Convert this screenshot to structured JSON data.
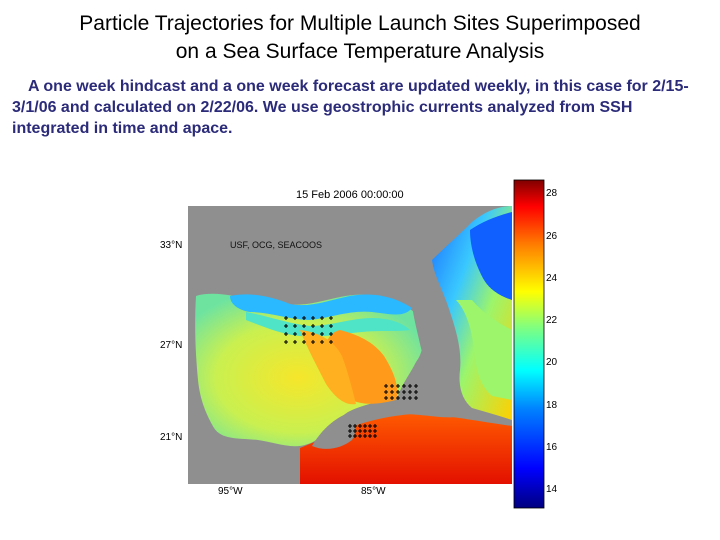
{
  "slide": {
    "title": "Particle Trajectories for Multiple Launch Sites Superimposed\non a Sea Surface Temperature Analysis",
    "description": "A one week hindcast and a one week forecast are updated weekly, in this case for 2/15-3/1/06 and calculated on 2/22/06.  We use geostrophic currents analyzed from SSH integrated in time and apace."
  },
  "map": {
    "timestamp": "15 Feb 2006 00:00:00",
    "credit": "USF, OCG, SEACOOS",
    "lat_labels": [
      "33°N",
      "27°N",
      "21°N"
    ],
    "lon_labels": [
      "95°W",
      "85°W"
    ],
    "colorbar": {
      "ticks": [
        "28",
        "26",
        "24",
        "22",
        "20",
        "18",
        "16",
        "14"
      ],
      "min": 13.5,
      "max": 29,
      "colors": [
        "#000080",
        "#0000ff",
        "#0080ff",
        "#00ffff",
        "#80ff80",
        "#ffff00",
        "#ff8000",
        "#ff0000",
        "#800000"
      ]
    },
    "land_color": "#8f8f8f"
  }
}
